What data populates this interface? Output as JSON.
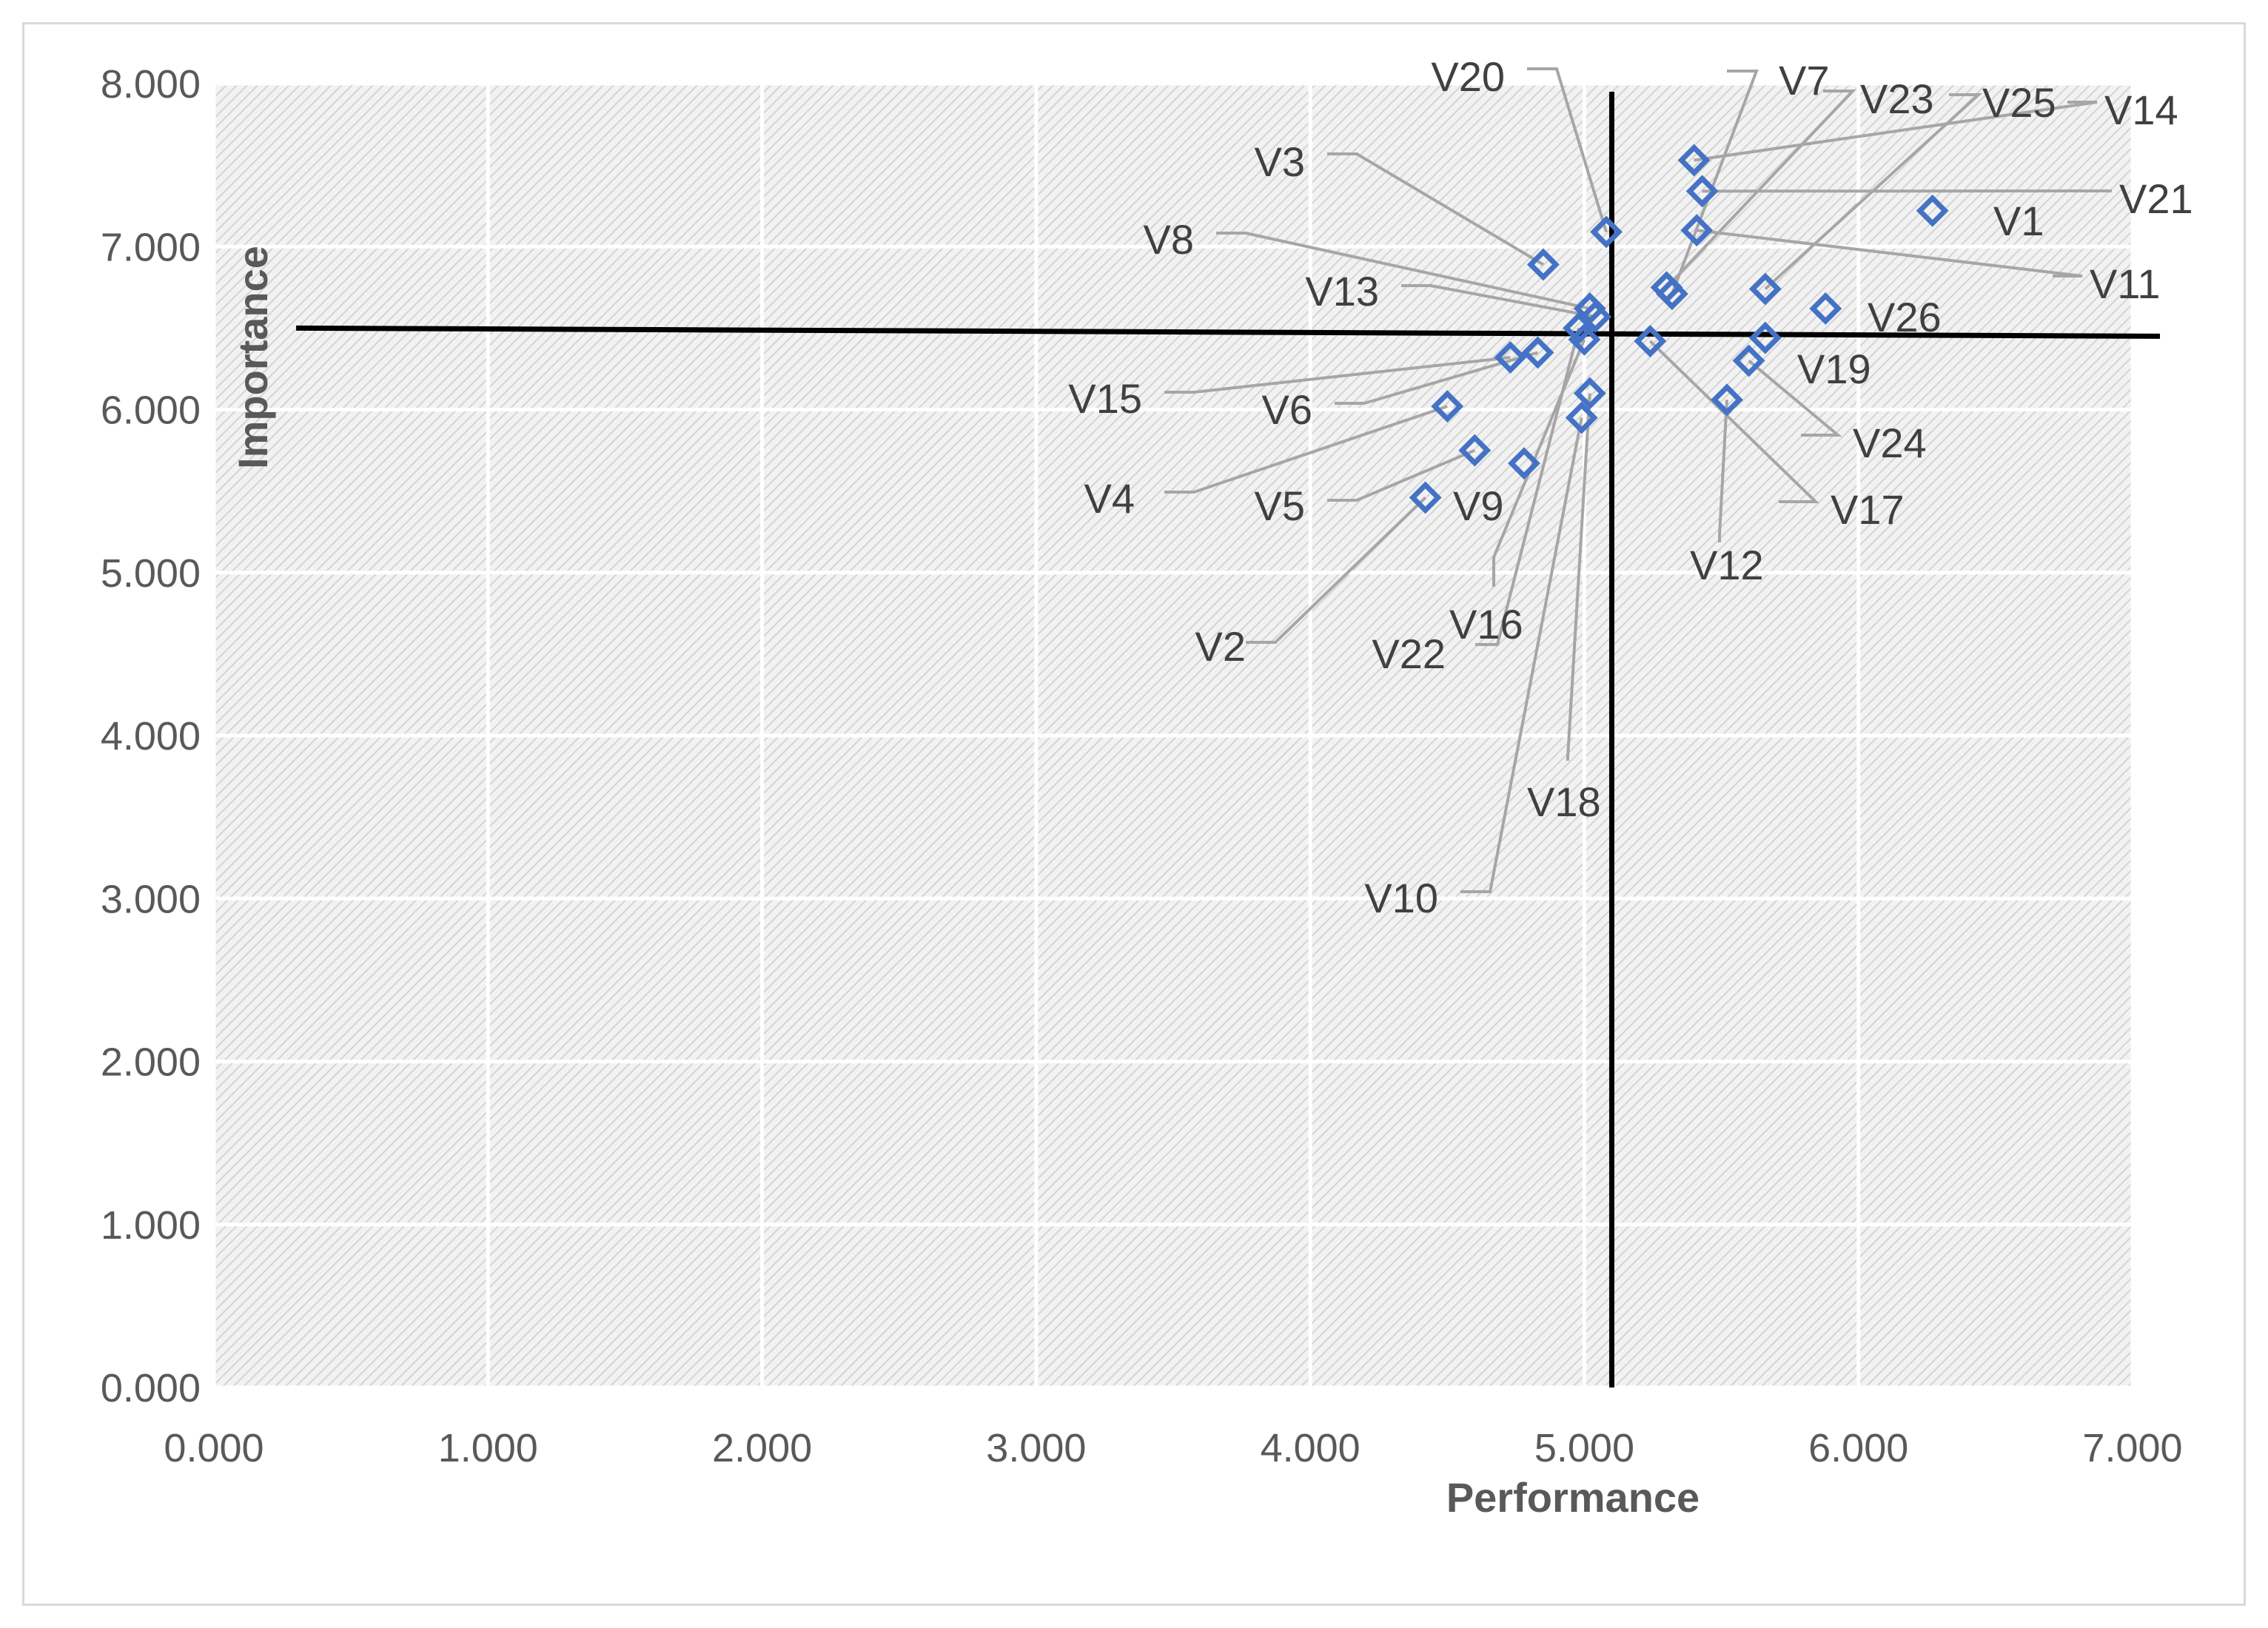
{
  "chart_data": {
    "type": "scatter",
    "xlabel": "Performance",
    "ylabel": "Importance",
    "xlim": [
      0,
      7
    ],
    "ylim": [
      0,
      8
    ],
    "x_ticks": [
      "0.000",
      "1.000",
      "2.000",
      "3.000",
      "4.000",
      "5.000",
      "6.000",
      "7.000"
    ],
    "y_ticks": [
      "0.000",
      "1.000",
      "2.000",
      "3.000",
      "4.000",
      "5.000",
      "6.000",
      "7.000",
      "8.000"
    ],
    "grid": true,
    "plot_area_pattern": "diagonal-hatch",
    "marker": "diamond",
    "marker_color": "#4472c4",
    "reference_line_color": "#000000",
    "reference_lines": {
      "vertical_x": 5.1,
      "horizontal": [
        [
          0.3,
          6.5
        ],
        [
          7.1,
          6.45
        ]
      ]
    },
    "points": [
      {
        "label": "V1",
        "x": 6.27,
        "y": 7.22
      },
      {
        "label": "V2",
        "x": 4.42,
        "y": 5.46
      },
      {
        "label": "V3",
        "x": 4.85,
        "y": 6.89
      },
      {
        "label": "V4",
        "x": 4.5,
        "y": 6.02
      },
      {
        "label": "V5",
        "x": 4.6,
        "y": 5.75
      },
      {
        "label": "V6",
        "x": 4.83,
        "y": 6.35
      },
      {
        "label": "V7",
        "x": 5.32,
        "y": 6.71
      },
      {
        "label": "V8",
        "x": 5.02,
        "y": 6.62
      },
      {
        "label": "V9",
        "x": 4.78,
        "y": 5.67
      },
      {
        "label": "V10",
        "x": 4.99,
        "y": 5.95
      },
      {
        "label": "V11",
        "x": 5.41,
        "y": 7.1
      },
      {
        "label": "V12",
        "x": 5.52,
        "y": 6.06
      },
      {
        "label": "V13",
        "x": 5.04,
        "y": 6.57
      },
      {
        "label": "V14",
        "x": 5.4,
        "y": 7.53
      },
      {
        "label": "V15",
        "x": 4.73,
        "y": 6.32
      },
      {
        "label": "V16",
        "x": 5.0,
        "y": 6.43
      },
      {
        "label": "V17",
        "x": 5.24,
        "y": 6.42
      },
      {
        "label": "V18",
        "x": 5.02,
        "y": 6.1
      },
      {
        "label": "V19",
        "x": 5.66,
        "y": 6.44
      },
      {
        "label": "V20",
        "x": 5.08,
        "y": 7.09
      },
      {
        "label": "V21",
        "x": 5.43,
        "y": 7.34
      },
      {
        "label": "V22",
        "x": 4.98,
        "y": 6.5
      },
      {
        "label": "V23",
        "x": 5.3,
        "y": 6.75
      },
      {
        "label": "V24",
        "x": 5.6,
        "y": 6.3
      },
      {
        "label": "V25",
        "x": 5.66,
        "y": 6.74
      },
      {
        "label": "V26",
        "x": 5.88,
        "y": 6.62
      }
    ]
  }
}
